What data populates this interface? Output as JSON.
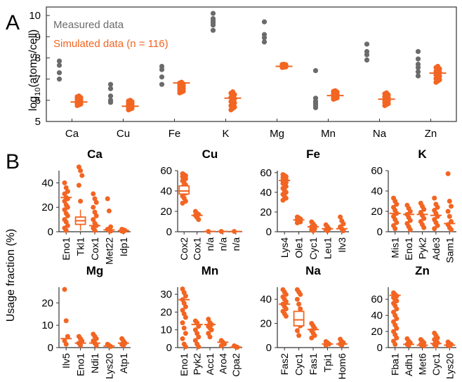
{
  "figure": {
    "panelA_label": "A",
    "panelB_label": "B",
    "ylabel_A_prefix": "log",
    "ylabel_A_sub": "10",
    "ylabel_A_suffix": "(atoms/cell)",
    "ylabel_B": "Usage fraction (%)"
  },
  "colors": {
    "measured": "#6b6b6b",
    "simulated": "#f26522",
    "frame": "#333333"
  },
  "chart_data": [
    {
      "id": "A",
      "type": "scatter",
      "categories": [
        "Ca",
        "Cu",
        "Fe",
        "K",
        "Mg",
        "Mn",
        "Na",
        "Zn"
      ],
      "ylim": [
        5,
        10.4
      ],
      "yticks": [
        5,
        6,
        7,
        8,
        9,
        10
      ],
      "legend": [
        "Measured data",
        "Simulated data (n = 116)"
      ],
      "legend_position": "top-left",
      "measured": [
        [
          7.85,
          7.65,
          7.3,
          7.0
        ],
        [
          6.75,
          6.55,
          6.2,
          6.0,
          5.9
        ],
        [
          7.6,
          7.45,
          7.1,
          6.75
        ],
        [
          10.1,
          9.85,
          9.75,
          9.65,
          9.55,
          9.3
        ],
        [
          9.7,
          9.1,
          8.95,
          8.75
        ],
        [
          7.4,
          6.1,
          5.95,
          5.85,
          5.75,
          5.65
        ],
        [
          8.65,
          8.3,
          8.15,
          7.9
        ],
        [
          8.3,
          7.95,
          7.7,
          7.55,
          7.35,
          7.15
        ]
      ],
      "simulated_median": [
        5.92,
        5.72,
        6.82,
        6.1,
        7.6,
        6.22,
        6.05,
        7.28
      ],
      "simulated_range": [
        [
          5.75,
          6.2
        ],
        [
          5.55,
          6.0
        ],
        [
          6.35,
          6.85
        ],
        [
          5.55,
          6.4
        ],
        [
          7.55,
          7.7
        ],
        [
          6.05,
          6.45
        ],
        [
          5.75,
          6.35
        ],
        [
          6.85,
          7.6
        ]
      ]
    },
    {
      "id": "B-Ca",
      "title": "Ca",
      "type": "scatter",
      "categories": [
        "Eno1",
        "Tkl1",
        "Cox1",
        "Met22",
        "Idp1"
      ],
      "ylim": [
        0,
        50
      ],
      "yticks": [
        0,
        20,
        40
      ],
      "points": [
        [
          40,
          36,
          33,
          31,
          28,
          27,
          25,
          22,
          20,
          18,
          15,
          13,
          10,
          8,
          5,
          3,
          1
        ],
        [
          53,
          50,
          46,
          38,
          25,
          10
        ],
        [
          31,
          27,
          24,
          20,
          16,
          13,
          10,
          7,
          5,
          3,
          1
        ],
        [
          27,
          17,
          4,
          2,
          1,
          0.5
        ],
        [
          2,
          1.5,
          1,
          0.5,
          0.3
        ]
      ],
      "median": [
        28,
        9,
        5,
        1.5,
        1
      ],
      "box": [
        null,
        [
          6,
          12
        ],
        null,
        null,
        null
      ],
      "whisker": [
        null,
        [
          1,
          18
        ],
        null,
        null,
        null
      ]
    },
    {
      "id": "B-Cu",
      "title": "Cu",
      "type": "scatter",
      "categories": [
        "Cox2",
        "Cox1",
        "n/a",
        "n/a",
        "n/a"
      ],
      "ylim": [
        0,
        60
      ],
      "yticks": [
        0,
        20,
        40,
        60
      ],
      "points": [
        [
          57,
          56,
          55,
          54,
          53,
          52,
          50,
          48,
          46,
          44,
          42,
          38,
          35,
          33,
          30,
          28
        ],
        [
          20,
          18,
          17,
          16,
          14,
          12
        ],
        [
          0.3
        ],
        [
          0.3
        ],
        [
          0.3
        ]
      ],
      "median": [
        40,
        16,
        0.3,
        0.3,
        0.3
      ],
      "box": [
        [
          37,
          45
        ],
        null,
        null,
        null,
        null
      ],
      "whisker": [
        [
          28,
          57
        ],
        null,
        null,
        null,
        null
      ]
    },
    {
      "id": "B-Fe",
      "title": "Fe",
      "type": "scatter",
      "categories": [
        "Lys4",
        "Ole1",
        "Cyc1",
        "Leu1",
        "Ilv3"
      ],
      "ylim": [
        0,
        62
      ],
      "yticks": [
        0,
        20,
        40,
        60
      ],
      "points": [
        [
          58,
          57,
          56,
          55,
          54,
          53,
          52,
          51,
          50,
          49,
          48,
          46,
          44,
          42,
          40,
          38,
          36,
          34,
          32
        ],
        [
          15,
          14,
          13,
          12,
          11,
          10,
          9
        ],
        [
          10,
          8,
          6,
          5,
          4,
          3,
          2,
          1
        ],
        [
          7,
          5,
          3,
          2,
          1
        ],
        [
          15,
          11,
          8,
          5,
          3,
          1
        ]
      ],
      "median": [
        52,
        12,
        5,
        3,
        3
      ],
      "box": [
        null,
        null,
        null,
        null,
        null
      ],
      "whisker": [
        null,
        null,
        null,
        null,
        null
      ]
    },
    {
      "id": "B-K",
      "title": "K",
      "type": "scatter",
      "categories": [
        "Mis1",
        "Eno1",
        "Pyk2",
        "Ade3",
        "Sam1"
      ],
      "ylim": [
        0,
        60
      ],
      "yticks": [
        0,
        20,
        40,
        60
      ],
      "points": [
        [
          33,
          30,
          27,
          24,
          21,
          18,
          15,
          12,
          9,
          6,
          3
        ],
        [
          26,
          23,
          20,
          17,
          14,
          11,
          8,
          5,
          2
        ],
        [
          28,
          25,
          22,
          19,
          16,
          13,
          10,
          7,
          4
        ],
        [
          33,
          27,
          24,
          21,
          18,
          15,
          12,
          9,
          6,
          3
        ],
        [
          57,
          30,
          25,
          20,
          15,
          10,
          7,
          4,
          2
        ]
      ],
      "median": [
        18,
        17,
        17,
        16,
        8
      ],
      "box": [
        null,
        null,
        null,
        null,
        null
      ],
      "whisker": [
        null,
        null,
        null,
        null,
        null
      ]
    },
    {
      "id": "B-Mg",
      "title": "Mg",
      "type": "scatter",
      "categories": [
        "Ilv5",
        "Eno1",
        "Ndi1",
        "Lys20",
        "Atp1"
      ],
      "ylim": [
        0,
        27
      ],
      "yticks": [
        0,
        10,
        20
      ],
      "points": [
        [
          26,
          12,
          5,
          3,
          1.5
        ],
        [
          5,
          4,
          3,
          2,
          1
        ],
        [
          6,
          5,
          4,
          3,
          2,
          1
        ],
        [
          1.5,
          1,
          0.5
        ],
        [
          4,
          3,
          2,
          1.5,
          1
        ]
      ],
      "median": [
        4,
        2,
        2,
        0.7,
        2
      ],
      "box": [
        null,
        null,
        null,
        null,
        null
      ],
      "whisker": [
        null,
        null,
        null,
        null,
        null
      ]
    },
    {
      "id": "B-Mn",
      "title": "Mn",
      "type": "scatter",
      "categories": [
        "Eno1",
        "Pyk2",
        "Acc1",
        "Aro4",
        "Cpa2"
      ],
      "ylim": [
        0,
        34
      ],
      "yticks": [
        0,
        10,
        20,
        30
      ],
      "points": [
        [
          33,
          31,
          29,
          27,
          25,
          23,
          21,
          19,
          17,
          14,
          11,
          8,
          5,
          2,
          0.5
        ],
        [
          15,
          14,
          12,
          10,
          8,
          6,
          4,
          2,
          0.5
        ],
        [
          16,
          14,
          13,
          12,
          11,
          10,
          8,
          6
        ],
        [
          4,
          3,
          2,
          1
        ],
        [
          1,
          0.5,
          0.2
        ]
      ],
      "median": [
        27,
        13,
        13,
        3,
        0.3
      ],
      "box": [
        null,
        null,
        null,
        null,
        null
      ],
      "whisker": [
        null,
        null,
        null,
        null,
        null
      ]
    },
    {
      "id": "B-Na",
      "title": "Na",
      "type": "scatter",
      "categories": [
        "Fas2",
        "Cyc1",
        "Fas1",
        "Tpi1",
        "Hom6"
      ],
      "ylim": [
        0,
        50
      ],
      "yticks": [
        0,
        20,
        40
      ],
      "points": [
        [
          48,
          46,
          44,
          42,
          40,
          38,
          36,
          34,
          32,
          30,
          28,
          26
        ],
        [
          48,
          46,
          44,
          40,
          36,
          32,
          28,
          22,
          18,
          14,
          10
        ],
        [
          20,
          18,
          16,
          14,
          12,
          10,
          8
        ],
        [
          5,
          4,
          3,
          2
        ],
        [
          7,
          5,
          4,
          3,
          2
        ]
      ],
      "median": [
        36,
        23,
        15,
        3,
        3
      ],
      "box": [
        null,
        [
          18,
          30
        ],
        null,
        null,
        null
      ],
      "whisker": [
        null,
        [
          8,
          38
        ],
        null,
        null,
        null
      ]
    },
    {
      "id": "B-Zn",
      "title": "Zn",
      "type": "scatter",
      "categories": [
        "Fba1",
        "Adh1",
        "Met6",
        "Cyc1",
        "Lys20"
      ],
      "ylim": [
        0,
        75
      ],
      "yticks": [
        0,
        20,
        40,
        60
      ],
      "points": [
        [
          68,
          66,
          64,
          62,
          60,
          58,
          55,
          52,
          48,
          44,
          40,
          36,
          32,
          28,
          24,
          20,
          16,
          12,
          8,
          4
        ],
        [
          11,
          8,
          6,
          4,
          3
        ],
        [
          10,
          8,
          6,
          4,
          3,
          2
        ],
        [
          18,
          15,
          12,
          10,
          8,
          6,
          4,
          2
        ],
        [
          7,
          5,
          4,
          3,
          2
        ]
      ],
      "median": [
        65,
        4,
        3,
        5,
        3
      ],
      "box": [
        null,
        null,
        null,
        null,
        null
      ],
      "whisker": [
        null,
        null,
        null,
        null,
        null
      ]
    }
  ]
}
